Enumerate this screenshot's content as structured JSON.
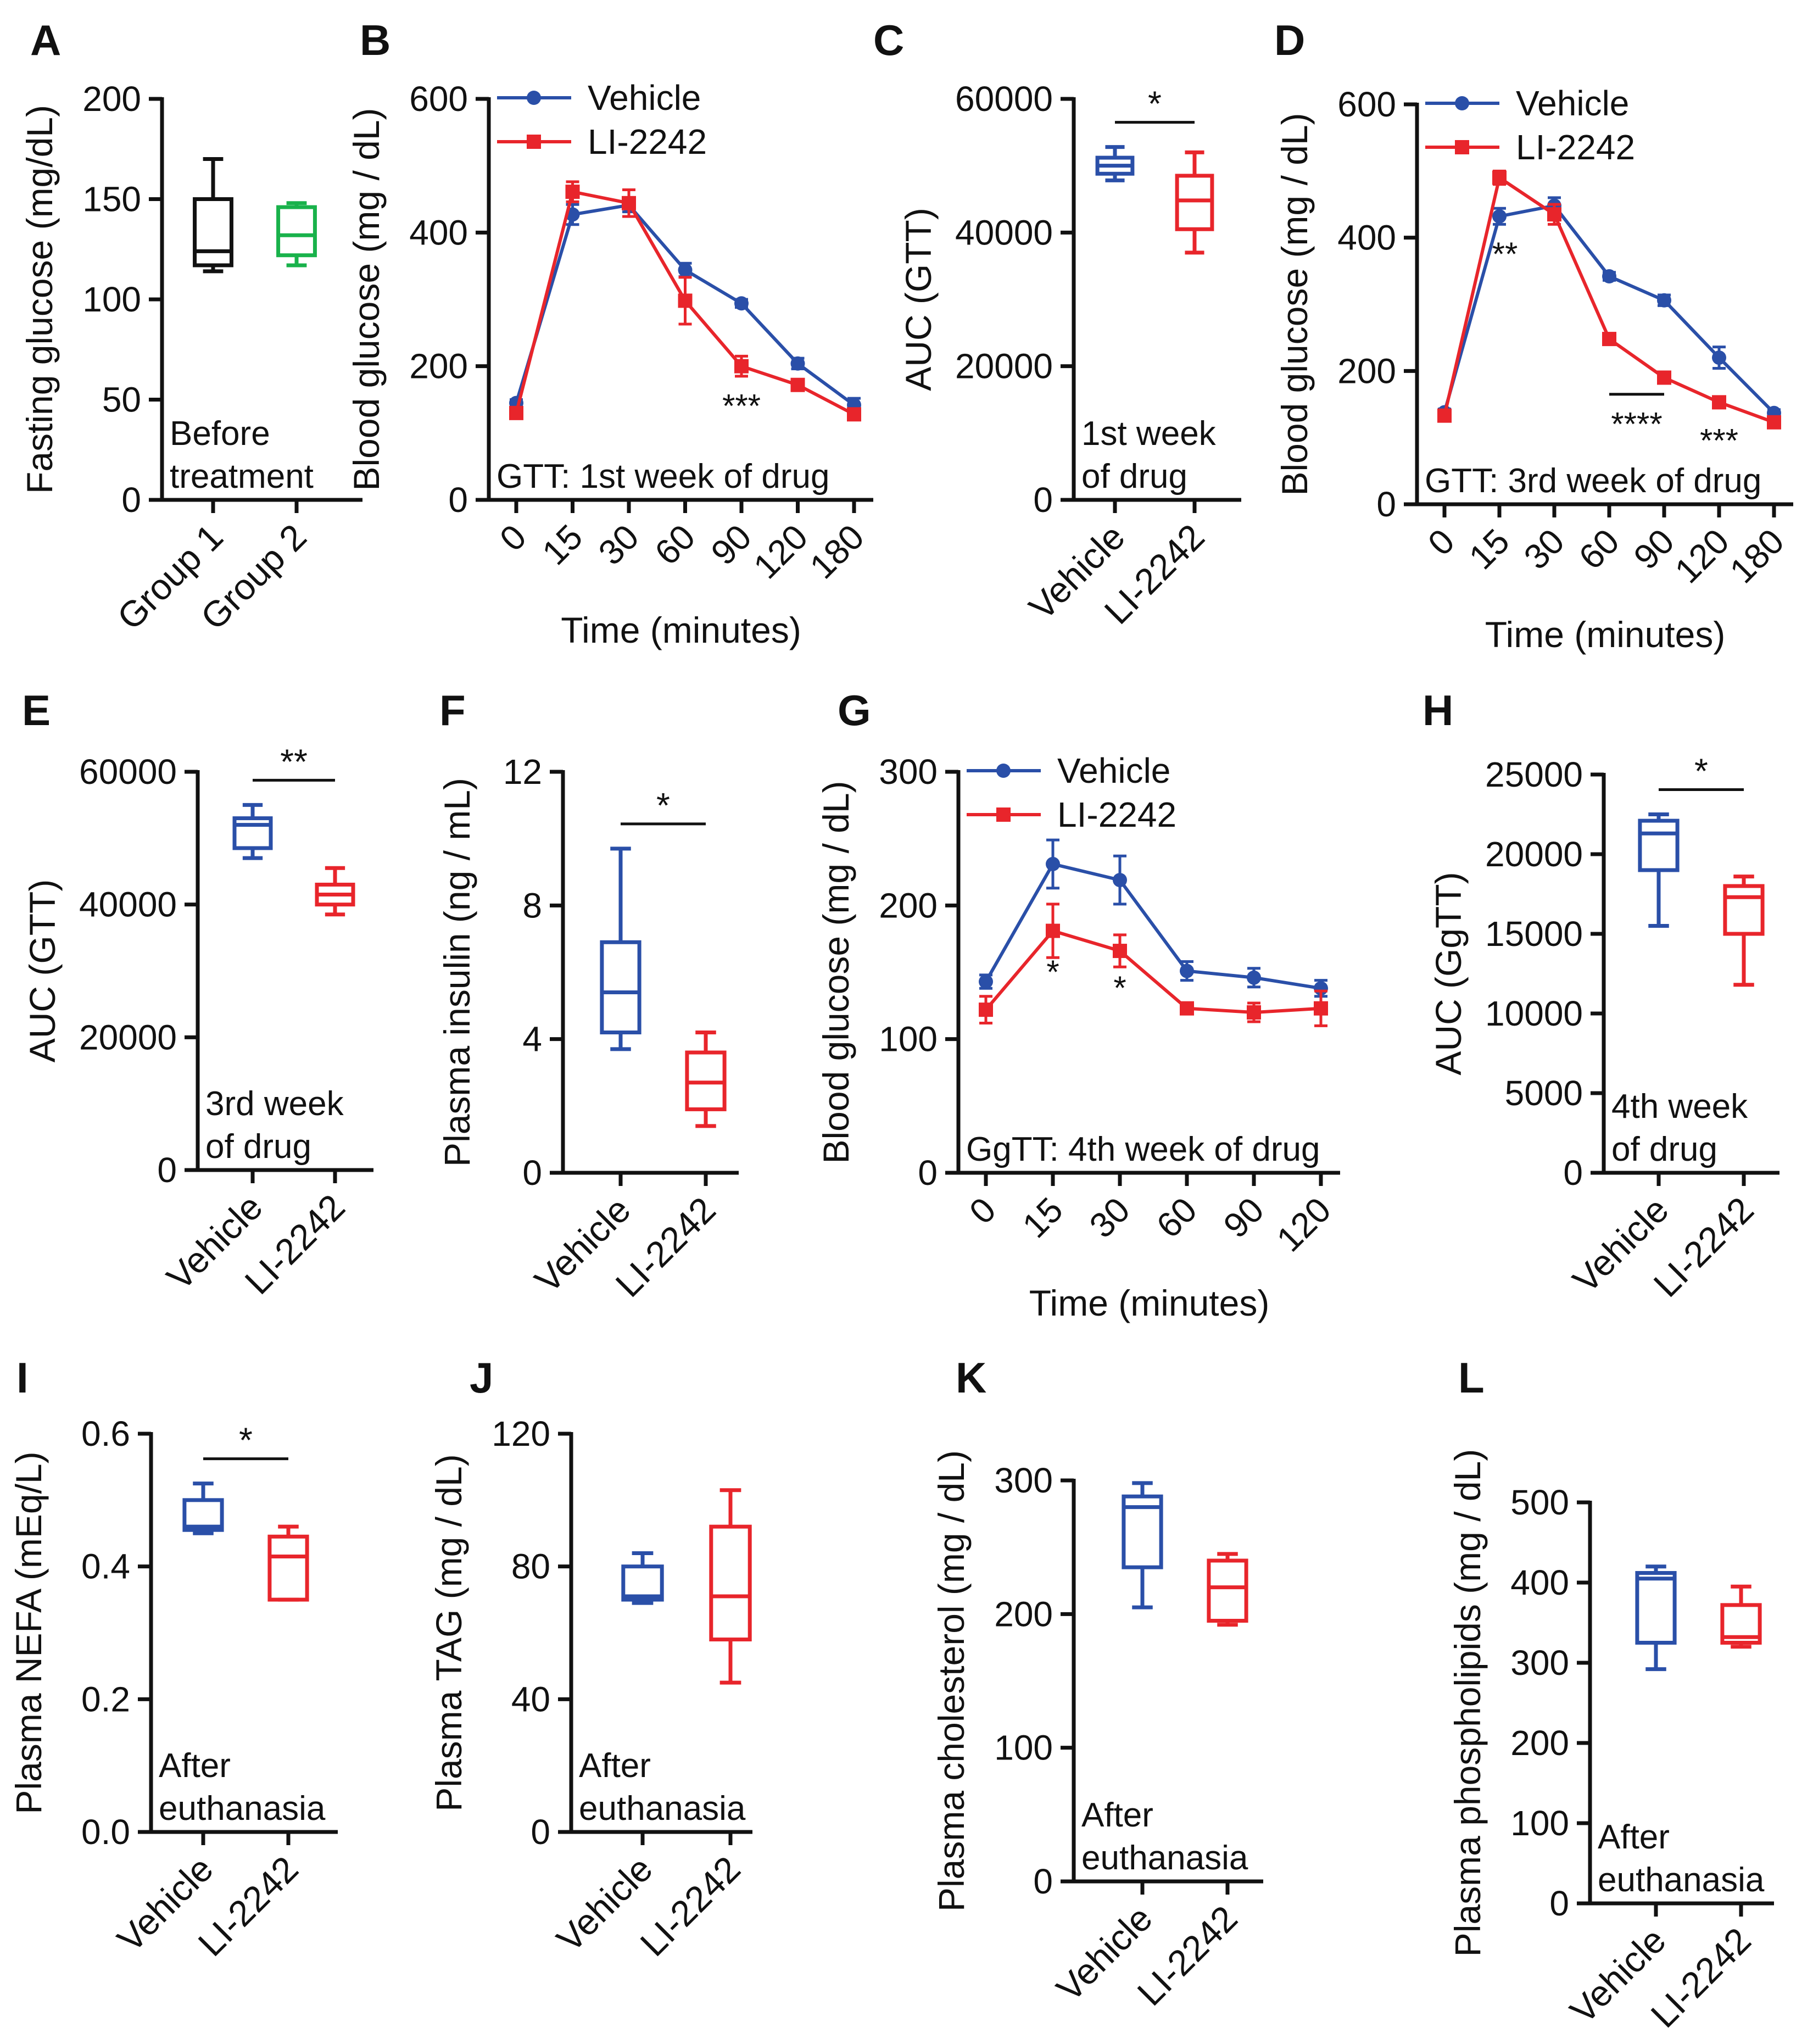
{
  "figure": {
    "colors": {
      "vehicle": "#2a4fa8",
      "drug": "#e8252b",
      "group1": "#111111",
      "group2": "#19b24b",
      "axis": "#111111"
    }
  },
  "chart_data": [
    {
      "panel": "A",
      "type": "box",
      "ylabel": "Fasting glucose (mg/dL)",
      "ylim": [
        0,
        200
      ],
      "yticks": [
        0,
        50,
        100,
        150,
        200
      ],
      "categories": [
        "Group 1",
        "Group 2"
      ],
      "annotation": [
        "Before",
        "treatment"
      ],
      "sig": null,
      "boxes": [
        {
          "name": "Group 1",
          "color": "group1",
          "min": 114,
          "q1": 117,
          "median": 124,
          "q3": 150,
          "max": 170
        },
        {
          "name": "Group 2",
          "color": "group2",
          "min": 117,
          "q1": 122,
          "median": 132,
          "q3": 146,
          "max": 148
        }
      ]
    },
    {
      "panel": "B",
      "type": "line",
      "ylabel": "Blood glucose (mg / dL)",
      "xlabel": "Time (minutes)",
      "ylim": [
        0,
        600
      ],
      "yticks": [
        0,
        200,
        400,
        600
      ],
      "x": [
        "0",
        "15",
        "30",
        "60",
        "90",
        "120",
        "180"
      ],
      "annotation": [
        "GTT: 1st week of drug"
      ],
      "series": [
        {
          "name": "Vehicle",
          "color": "vehicle",
          "marker": "circle",
          "values": [
            145,
            427,
            441,
            344,
            294,
            204,
            142
          ],
          "err": [
            5,
            15,
            10,
            10,
            6,
            8,
            10
          ]
        },
        {
          "name": "LI-2242",
          "color": "drug",
          "marker": "square",
          "values": [
            130,
            461,
            444,
            298,
            200,
            172,
            128
          ],
          "err": [
            8,
            15,
            20,
            35,
            15,
            8,
            6
          ]
        }
      ],
      "marks": [
        {
          "text": "***",
          "x": 4,
          "y": 140
        }
      ],
      "lines": []
    },
    {
      "panel": "C",
      "type": "box",
      "ylabel": "AUC (GTT)",
      "ylim": [
        0,
        60000
      ],
      "yticks": [
        0,
        20000,
        40000,
        60000
      ],
      "categories": [
        "Vehicle",
        "LI-2242"
      ],
      "annotation": [
        "1st week",
        "of drug"
      ],
      "sig": "*",
      "boxes": [
        {
          "name": "Vehicle",
          "color": "vehicle",
          "min": 47800,
          "q1": 48800,
          "median": 50000,
          "q3": 51200,
          "max": 52800
        },
        {
          "name": "LI-2242",
          "color": "drug",
          "min": 37000,
          "q1": 40500,
          "median": 44800,
          "q3": 48500,
          "max": 52000
        }
      ]
    },
    {
      "panel": "D",
      "type": "line",
      "ylabel": "Blood glucose (mg / dL)",
      "xlabel": "Time (minutes)",
      "ylim": [
        0,
        600
      ],
      "yticks": [
        0,
        200,
        400,
        600
      ],
      "x": [
        "0",
        "15",
        "30",
        "60",
        "90",
        "120",
        "180"
      ],
      "annotation": [
        "GTT: 3rd week of drug"
      ],
      "series": [
        {
          "name": "Vehicle",
          "color": "vehicle",
          "marker": "circle",
          "values": [
            138,
            432,
            448,
            342,
            306,
            220,
            137
          ],
          "err": [
            5,
            12,
            12,
            6,
            8,
            16,
            5
          ]
        },
        {
          "name": "LI-2242",
          "color": "drug",
          "marker": "square",
          "values": [
            133,
            490,
            435,
            248,
            190,
            153,
            123
          ],
          "err": [
            5,
            10,
            15,
            8,
            5,
            5,
            5
          ]
        }
      ],
      "marks": [
        {
          "text": "**",
          "x": 1.1,
          "y": 375
        },
        {
          "text": "****",
          "x": 3.5,
          "y": 120
        },
        {
          "text": "***",
          "x": 5,
          "y": 95
        }
      ],
      "lines": [
        {
          "x1": 3,
          "x2": 4,
          "y": 165
        }
      ]
    },
    {
      "panel": "E",
      "type": "box",
      "ylabel": "AUC (GTT)",
      "ylim": [
        0,
        60000
      ],
      "yticks": [
        0,
        20000,
        40000,
        60000
      ],
      "categories": [
        "Vehicle",
        "LI-2242"
      ],
      "annotation": [
        "3rd week",
        "of drug"
      ],
      "sig": "**",
      "boxes": [
        {
          "name": "Vehicle",
          "color": "vehicle",
          "min": 47000,
          "q1": 48500,
          "median": 52000,
          "q3": 53000,
          "max": 55000
        },
        {
          "name": "LI-2242",
          "color": "drug",
          "min": 38500,
          "q1": 40000,
          "median": 41500,
          "q3": 43000,
          "max": 45500
        }
      ]
    },
    {
      "panel": "F",
      "type": "box",
      "ylabel": "Plasma insulin (ng / mL)",
      "ylim": [
        0,
        12
      ],
      "yticks": [
        0,
        4,
        8,
        12
      ],
      "categories": [
        "Vehicle",
        "LI-2242"
      ],
      "annotation": [],
      "sig": "*",
      "boxes": [
        {
          "name": "Vehicle",
          "color": "vehicle",
          "min": 3.7,
          "q1": 4.2,
          "median": 5.4,
          "q3": 6.9,
          "max": 9.7
        },
        {
          "name": "LI-2242",
          "color": "drug",
          "min": 1.4,
          "q1": 1.9,
          "median": 2.7,
          "q3": 3.6,
          "max": 4.2
        }
      ]
    },
    {
      "panel": "G",
      "type": "line",
      "ylabel": "Blood glucose (mg / dL)",
      "xlabel": "Time (minutes)",
      "ylim": [
        0,
        300
      ],
      "yticks": [
        0,
        100,
        200,
        300
      ],
      "x": [
        "0",
        "15",
        "30",
        "60",
        "90",
        "120"
      ],
      "annotation": [
        "GgTT: 4th week of drug"
      ],
      "series": [
        {
          "name": "Vehicle",
          "color": "vehicle",
          "marker": "circle",
          "values": [
            143,
            231,
            219,
            151,
            146,
            138
          ],
          "err": [
            5,
            18,
            18,
            7,
            7,
            6
          ]
        },
        {
          "name": "LI-2242",
          "color": "drug",
          "marker": "square",
          "values": [
            122,
            181,
            166,
            123,
            120,
            123
          ],
          "err": [
            10,
            20,
            12,
            4,
            7,
            13
          ]
        }
      ],
      "marks": [
        {
          "text": "*",
          "x": 1,
          "y": 150
        },
        {
          "text": "*",
          "x": 2,
          "y": 138
        }
      ],
      "lines": []
    },
    {
      "panel": "H",
      "type": "box",
      "ylabel": "AUC (GgTT)",
      "ylim": [
        0,
        25000
      ],
      "yticks": [
        0,
        5000,
        10000,
        15000,
        20000,
        25000
      ],
      "categories": [
        "Vehicle",
        "LI-2242"
      ],
      "annotation": [
        "4th week",
        "of drug"
      ],
      "sig": "*",
      "boxes": [
        {
          "name": "Vehicle",
          "color": "vehicle",
          "min": 15500,
          "q1": 19000,
          "median": 21300,
          "q3": 22100,
          "max": 22500
        },
        {
          "name": "LI-2242",
          "color": "drug",
          "min": 11800,
          "q1": 15000,
          "median": 17300,
          "q3": 18000,
          "max": 18600
        }
      ]
    },
    {
      "panel": "I",
      "type": "box",
      "ylabel": "Plasma NEFA (mEq/L)",
      "ylim": [
        0,
        0.6
      ],
      "yticks": [
        "0.0",
        "0.2",
        "0.4",
        "0.6"
      ],
      "categories": [
        "Vehicle",
        "LI-2242"
      ],
      "annotation": [
        "After",
        "euthanasia"
      ],
      "sig": "*",
      "boxes": [
        {
          "name": "Vehicle",
          "color": "vehicle",
          "min": 0.45,
          "q1": 0.455,
          "median": 0.46,
          "q3": 0.5,
          "max": 0.525
        },
        {
          "name": "LI-2242",
          "color": "drug",
          "min": 0.35,
          "q1": 0.35,
          "median": 0.415,
          "q3": 0.445,
          "max": 0.46
        }
      ]
    },
    {
      "panel": "J",
      "type": "box",
      "ylabel": "Plasma TAG (mg / dL)",
      "ylim": [
        0,
        120
      ],
      "yticks": [
        0,
        40,
        80,
        120
      ],
      "categories": [
        "Vehicle",
        "LI-2242"
      ],
      "annotation": [
        "After",
        "euthanasia"
      ],
      "sig": null,
      "boxes": [
        {
          "name": "Vehicle",
          "color": "vehicle",
          "min": 69,
          "q1": 70,
          "median": 71,
          "q3": 80,
          "max": 84
        },
        {
          "name": "LI-2242",
          "color": "drug",
          "min": 45,
          "q1": 58,
          "median": 71,
          "q3": 92,
          "max": 103
        }
      ]
    },
    {
      "panel": "K",
      "type": "box",
      "ylabel": "Plasma cholesterol (mg / dL)",
      "ylim": [
        0,
        300
      ],
      "yticks": [
        0,
        100,
        200,
        300
      ],
      "categories": [
        "Vehicle",
        "LI-2242"
      ],
      "annotation": [
        "After",
        "euthanasia"
      ],
      "sig": null,
      "boxes": [
        {
          "name": "Vehicle",
          "color": "vehicle",
          "min": 205,
          "q1": 235,
          "median": 280,
          "q3": 288,
          "max": 298
        },
        {
          "name": "LI-2242",
          "color": "drug",
          "min": 192,
          "q1": 195,
          "median": 220,
          "q3": 240,
          "max": 245
        }
      ]
    },
    {
      "panel": "L",
      "type": "box",
      "ylabel": "Plasma phospholipids (mg / dL)",
      "ylim": [
        0,
        500
      ],
      "yticks": [
        0,
        100,
        200,
        300,
        400,
        500
      ],
      "categories": [
        "Vehicle",
        "LI-2242"
      ],
      "annotation": [
        "After",
        "euthanasia"
      ],
      "sig": null,
      "boxes": [
        {
          "name": "Vehicle",
          "color": "vehicle",
          "min": 292,
          "q1": 325,
          "median": 405,
          "q3": 412,
          "max": 420
        },
        {
          "name": "LI-2242",
          "color": "drug",
          "min": 320,
          "q1": 325,
          "median": 332,
          "q3": 372,
          "max": 395
        }
      ]
    }
  ]
}
